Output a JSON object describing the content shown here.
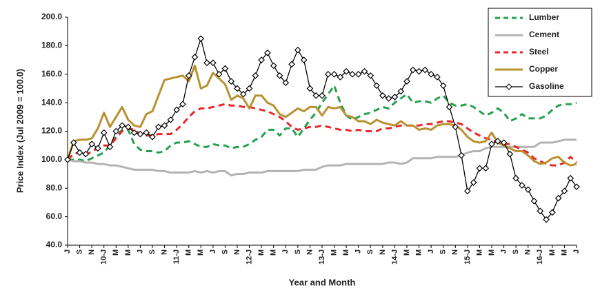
{
  "chart_data": {
    "type": "line",
    "x_label": "Year and Month",
    "y_label": "Price Index (Jul 2009 = 100.0)",
    "categories": [
      "J",
      null,
      "S",
      null,
      "N",
      null,
      "10-J",
      null,
      "M",
      null,
      "M",
      null,
      "J",
      null,
      "S",
      null,
      "N",
      null,
      "11-J",
      null,
      "M",
      null,
      "M",
      null,
      "J",
      null,
      "S",
      null,
      "N",
      null,
      "12-J",
      null,
      "M",
      null,
      "M",
      null,
      "J",
      null,
      "S",
      null,
      "N",
      null,
      "13-J",
      null,
      "M",
      null,
      "M",
      null,
      "J",
      null,
      "S",
      null,
      "N",
      null,
      "14-J",
      null,
      "M",
      null,
      "M",
      null,
      "J",
      null,
      "S",
      null,
      "N",
      null,
      "15-J",
      null,
      "M",
      null,
      "M",
      null,
      "J",
      null,
      "S",
      null,
      "N",
      null,
      "16-J",
      null,
      "M",
      null,
      "M",
      null,
      "J"
    ],
    "ylim": [
      40,
      200
    ],
    "yticks": [
      {
        "value": 40,
        "label": "40.0"
      },
      {
        "value": 60,
        "label": "60.0"
      },
      {
        "value": 80,
        "label": "80.0"
      },
      {
        "value": 100,
        "label": "100.0"
      },
      {
        "value": 120,
        "label": "120.0"
      },
      {
        "value": 140,
        "label": "140.0"
      },
      {
        "value": 160,
        "label": "160.0"
      },
      {
        "value": 180,
        "label": "180.0"
      },
      {
        "value": 200,
        "label": "200.0"
      }
    ],
    "grid": false,
    "legend": "top-right",
    "series": [
      {
        "name": "Lumber",
        "color": "#22a04b",
        "dashed": true,
        "values": [
          100,
          100,
          100,
          99,
          101,
          103,
          105,
          110,
          116,
          121,
          121,
          111,
          107,
          106,
          106,
          105,
          106,
          110,
          112,
          112,
          113,
          111,
          109,
          109,
          111,
          110,
          110,
          108,
          109,
          109,
          111,
          114,
          116,
          121,
          121,
          117,
          122,
          122,
          116,
          122,
          128,
          133,
          140,
          146,
          152,
          140,
          131,
          128,
          130,
          132,
          133,
          135,
          137,
          136,
          140,
          143,
          146,
          140,
          141,
          141,
          140,
          143,
          145,
          140,
          138,
          138,
          139,
          137,
          134,
          131,
          133,
          136,
          133,
          127,
          129,
          132,
          129,
          129,
          129,
          131,
          135,
          138,
          139,
          139,
          140
        ]
      },
      {
        "name": "Cement",
        "color": "#b3b3b3",
        "dashed": false,
        "values": [
          100,
          99,
          99,
          98,
          98,
          97,
          97,
          96,
          96,
          95,
          94,
          93,
          93,
          93,
          93,
          92,
          92,
          91,
          91,
          91,
          91,
          92,
          91,
          92,
          91,
          92,
          92,
          89,
          90,
          90,
          91,
          91,
          91,
          92,
          92,
          92,
          92,
          92,
          92,
          93,
          93,
          93,
          95,
          96,
          96,
          96,
          97,
          97,
          97,
          97,
          97,
          97,
          97,
          98,
          98,
          97,
          98,
          101,
          101,
          101,
          101,
          102,
          102,
          102,
          102,
          103,
          105,
          106,
          106,
          108,
          109,
          109,
          109,
          109,
          109,
          109,
          109,
          109,
          112,
          112,
          112,
          113,
          114,
          114,
          114
        ]
      },
      {
        "name": "Steel",
        "color": "#e8262a",
        "dashed": true,
        "values": [
          100,
          104,
          105,
          103,
          106,
          108,
          110,
          110,
          115,
          120,
          122,
          121,
          118,
          117,
          117,
          118,
          118,
          118,
          121,
          125,
          130,
          134,
          136,
          136,
          137,
          138,
          139,
          138,
          138,
          137,
          137,
          136,
          135,
          134,
          132,
          130,
          127,
          123,
          121,
          122,
          123,
          123,
          124,
          123,
          122,
          121,
          121,
          120,
          121,
          120,
          120,
          120,
          122,
          122,
          123,
          124,
          124,
          124,
          124,
          125,
          125,
          126,
          127,
          127,
          126,
          125,
          122,
          119,
          117,
          115,
          114,
          112,
          111,
          111,
          109,
          107,
          105,
          101,
          99,
          97,
          96,
          96,
          98,
          102,
          98
        ]
      },
      {
        "name": "Copper",
        "color": "#b8902e",
        "dashed": false,
        "values": [
          100,
          113,
          114,
          114,
          115,
          122,
          133,
          123,
          130,
          137,
          128,
          124,
          123,
          132,
          134,
          145,
          156,
          157,
          158,
          159,
          155,
          166,
          150,
          152,
          161,
          157,
          153,
          142,
          145,
          143,
          136,
          145,
          145,
          140,
          138,
          132,
          130,
          133,
          136,
          134,
          137,
          137,
          131,
          137,
          136,
          137,
          131,
          130,
          127,
          127,
          125,
          128,
          126,
          125,
          124,
          127,
          124,
          124,
          121,
          122,
          121,
          124,
          125,
          125,
          124,
          121,
          116,
          113,
          112,
          113,
          119,
          112,
          110,
          108,
          106,
          106,
          103,
          99,
          97,
          98,
          101,
          102,
          98,
          96,
          97
        ]
      },
      {
        "name": "Gasoline",
        "color": "#000000",
        "dashed": false,
        "marker": "diamond",
        "values": [
          100,
          112,
          105,
          104,
          111,
          108,
          119,
          109,
          120,
          124,
          123,
          119,
          118,
          119,
          116,
          123,
          124,
          128,
          135,
          139,
          159,
          172,
          185,
          168,
          168,
          160,
          164,
          155,
          150,
          146,
          150,
          159,
          170,
          175,
          166,
          159,
          154,
          167,
          177,
          170,
          150,
          145,
          145,
          160,
          160,
          158,
          162,
          160,
          160,
          162,
          159,
          152,
          145,
          143,
          144,
          148,
          155,
          163,
          162,
          163,
          160,
          158,
          152,
          137,
          123,
          103,
          78,
          84,
          94,
          94,
          111,
          113,
          112,
          104,
          87,
          82,
          79,
          71,
          64,
          58,
          63,
          73,
          78,
          87,
          81
        ]
      }
    ]
  }
}
